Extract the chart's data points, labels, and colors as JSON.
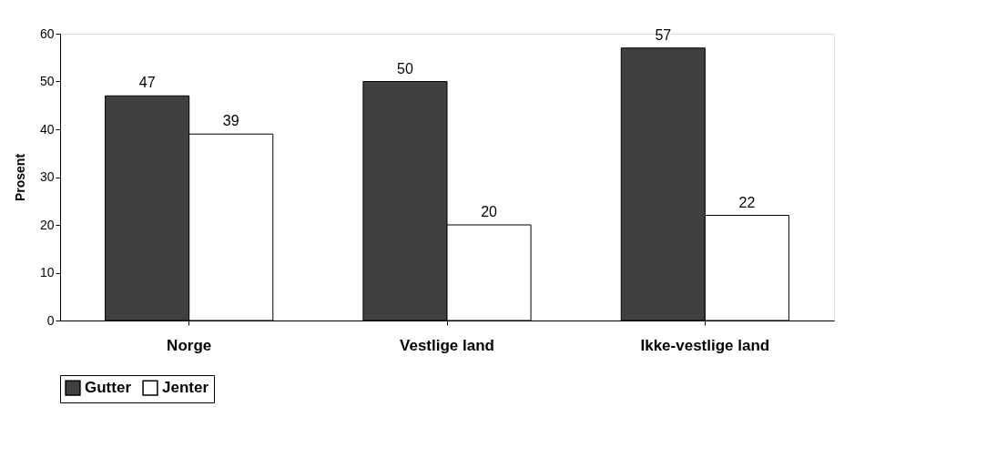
{
  "chart_data": {
    "type": "bar",
    "ylabel": "Prosent",
    "categories": [
      "Norge",
      "Vestlige land",
      "Ikke-vestlige land"
    ],
    "series": [
      {
        "name": "Gutter",
        "color": "#404040",
        "values": [
          47,
          50,
          57
        ]
      },
      {
        "name": "Jenter",
        "color": "#ffffff",
        "values": [
          39,
          20,
          22
        ]
      }
    ],
    "ylim": [
      0,
      60
    ],
    "yticks": [
      0,
      10,
      20,
      30,
      40,
      50,
      60
    ],
    "grid": false,
    "legend": "bottom",
    "data_labels": true
  }
}
